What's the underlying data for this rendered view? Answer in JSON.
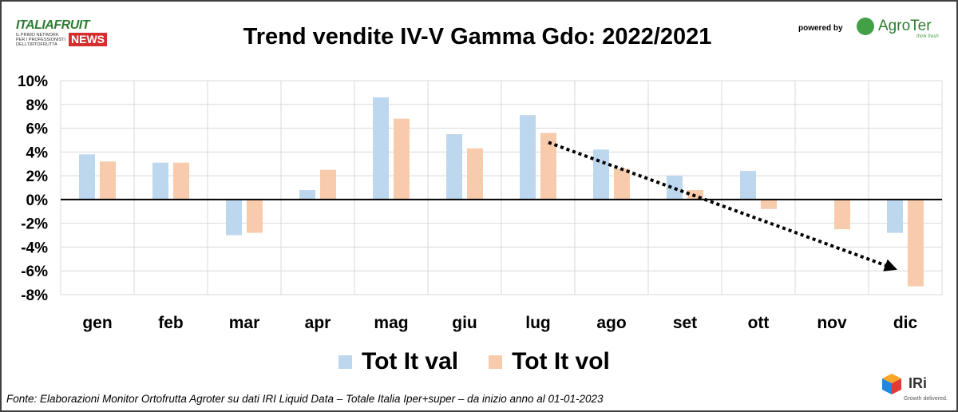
{
  "header": {
    "logo_brand": "ITALIAFRUIT",
    "logo_tagline": "IL PRIMO NETWORK PER I PROFESSIONISTI DELL'ORTOFRUTTA",
    "logo_news": "NEWS",
    "powered_by": "powered by",
    "sponsor_name": "AgroTer",
    "sponsor_tagline": "think fresh"
  },
  "footer": {
    "source": "Fonte: Elaborazioni Monitor Ortofrutta Agroter su dati IRI Liquid Data – Totale Italia Iper+super –  da inizio anno al 01-01-2023",
    "iri_name": "IRi",
    "iri_tagline": "Growth delivered."
  },
  "colors": {
    "val": "#bdd7ee",
    "vol": "#f8cbad",
    "arrow": "#000000",
    "grid": "#d9d9d9"
  },
  "chart_data": {
    "type": "bar",
    "title": "Trend vendite IV-V Gamma Gdo: 2022/2021",
    "xlabel": "",
    "ylabel": "",
    "ylim": [
      -8,
      10
    ],
    "yticks": [
      10,
      8,
      6,
      4,
      2,
      0,
      -2,
      -4,
      -6,
      -8
    ],
    "ytick_labels": [
      "10%",
      "8%",
      "6%",
      "4%",
      "2%",
      "0%",
      "-2%",
      "-4%",
      "-6%",
      "-8%"
    ],
    "categories": [
      "gen",
      "feb",
      "mar",
      "apr",
      "mag",
      "giu",
      "lug",
      "ago",
      "set",
      "ott",
      "nov",
      "dic"
    ],
    "series": [
      {
        "name": "Tot It val",
        "values": [
          3.8,
          3.1,
          -3.0,
          0.8,
          8.6,
          5.5,
          7.1,
          4.2,
          2.0,
          2.4,
          0.0,
          -2.8
        ]
      },
      {
        "name": "Tot It vol",
        "values": [
          3.2,
          3.1,
          -2.8,
          2.5,
          6.8,
          4.3,
          5.6,
          2.6,
          0.8,
          -0.8,
          -2.5,
          -7.3
        ]
      }
    ],
    "grid": true,
    "legend_position": "bottom",
    "annotation": {
      "type": "trend-arrow",
      "style": "dotted",
      "from": {
        "category": "lug",
        "y": 4.8
      },
      "to": {
        "category": "dic",
        "y": -5.9
      }
    }
  }
}
